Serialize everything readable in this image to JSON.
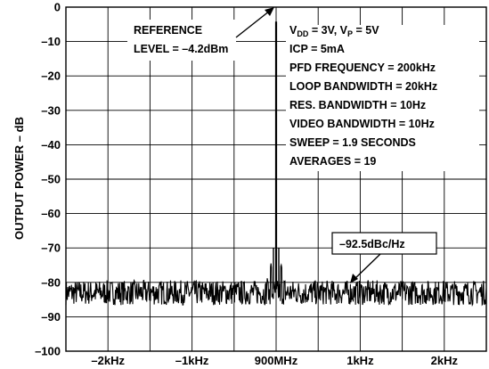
{
  "chart_data": {
    "type": "line",
    "title": "",
    "xlabel": "",
    "ylabel": "OUTPUT POWER – dB",
    "ylim": [
      -100,
      0
    ],
    "yticks": [
      0,
      -10,
      -20,
      -30,
      -40,
      -50,
      -60,
      -70,
      -80,
      -90,
      -100
    ],
    "ytick_labels": [
      "0",
      "–10",
      "–20",
      "–30",
      "–40",
      "–50",
      "–60",
      "–70",
      "–80",
      "–90",
      "–100"
    ],
    "xlim": [
      -2.5,
      2.5
    ],
    "x_unit": "kHz offset from 900MHz",
    "xticks": [
      -2,
      -1,
      0,
      1,
      2
    ],
    "xtick_labels": [
      "–2kHz",
      "–1kHz",
      "900MHz",
      "1kHz",
      "2kHz"
    ],
    "grid": true,
    "series": [
      {
        "noise_floor_dB": -83,
        "noise_ripple_dB": [
          -87,
          -79
        ],
        "carrier_peak": {
          "x": 0,
          "y": -4.2
        },
        "spurs": [
          {
            "x": -0.06,
            "y": -74
          },
          {
            "x": 0.06,
            "y": -74
          },
          {
            "x": -0.1,
            "y": -78
          },
          {
            "x": 0.1,
            "y": -78
          }
        ]
      }
    ],
    "annotations": {
      "reference": [
        "REFERENCE",
        "LEVEL = –4.2dBm"
      ],
      "noise": "–92.5dBc/Hz",
      "settings": [
        {
          "main": "V",
          "sub": "DD",
          "rest": " = 3V, V",
          "sub2": "P",
          "rest2": " = 5V"
        },
        {
          "main": "ICP = 5mA"
        },
        {
          "main": "PFD FREQUENCY = 200kHz"
        },
        {
          "main": "LOOP BANDWIDTH = 20kHz"
        },
        {
          "main": "RES. BANDWIDTH = 10Hz"
        },
        {
          "main": "VIDEO BANDWIDTH = 10Hz"
        },
        {
          "main": "SWEEP = 1.9 SECONDS"
        },
        {
          "main": "AVERAGES = 19"
        }
      ]
    }
  }
}
